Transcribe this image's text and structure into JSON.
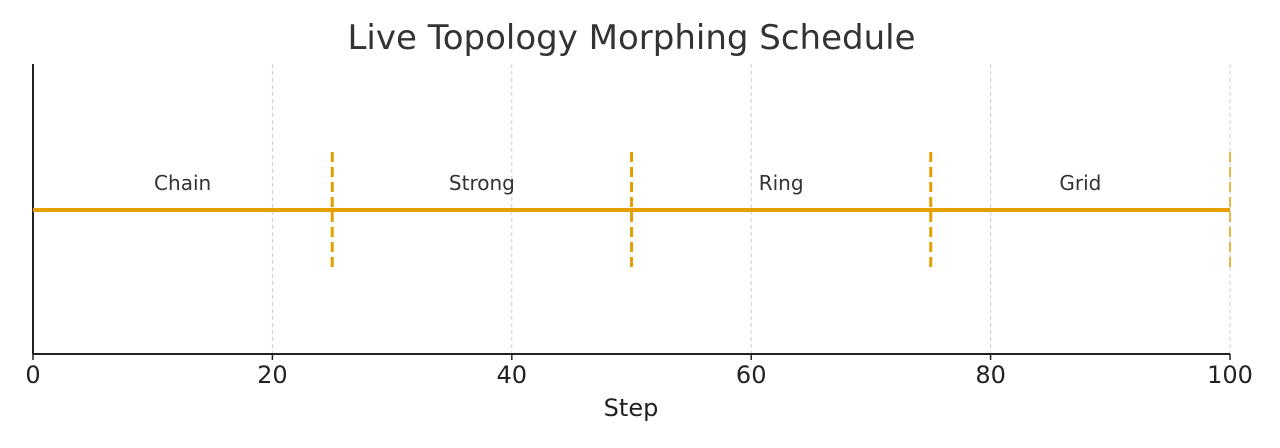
{
  "chart_data": {
    "type": "line",
    "title": "Live Topology Morphing Schedule",
    "xlabel": "Step",
    "ylabel": "",
    "xlim": [
      0,
      100
    ],
    "xticks": [
      0,
      20,
      40,
      60,
      80,
      100
    ],
    "grid": "vertical dashed",
    "line_color": "#E69F00",
    "timeline": {
      "x": [
        0,
        100
      ]
    },
    "boundaries": [
      25,
      50,
      75,
      100
    ],
    "phases": [
      {
        "label": "Chain",
        "start": 0,
        "end": 25
      },
      {
        "label": "Strong",
        "start": 25,
        "end": 50
      },
      {
        "label": "Ring",
        "start": 50,
        "end": 75
      },
      {
        "label": "Grid",
        "start": 75,
        "end": 100
      }
    ]
  }
}
